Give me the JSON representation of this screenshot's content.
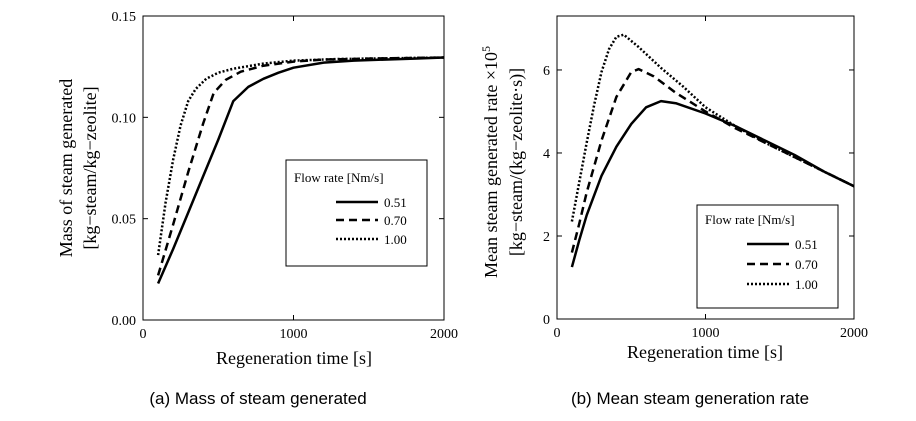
{
  "chart_data": [
    {
      "type": "line",
      "caption": "(a) Mass of steam generated",
      "xlabel": "Regeneration time [s]",
      "ylabel": "Mass of steam generated",
      "ylabel_unit": "[kg−steam/kg−zeolite]",
      "xlim": [
        0,
        2000
      ],
      "ylim": [
        0,
        0.15
      ],
      "x_ticks": [
        0,
        1000,
        2000
      ],
      "y_ticks": [
        "0.00",
        "0.05",
        "0.10",
        "0.15"
      ],
      "grid": false,
      "legend": {
        "title": "Flow rate [Nm/s]",
        "placement": "center-right"
      },
      "series": [
        {
          "name": "0.51",
          "style": "solid",
          "points": [
            [
              100,
              0.018
            ],
            [
              200,
              0.035
            ],
            [
              300,
              0.053
            ],
            [
              400,
              0.071
            ],
            [
              500,
              0.089
            ],
            [
              600,
              0.108
            ],
            [
              700,
              0.115
            ],
            [
              800,
              0.119
            ],
            [
              900,
              0.122
            ],
            [
              1000,
              0.1245
            ],
            [
              1200,
              0.127
            ],
            [
              1400,
              0.128
            ],
            [
              1600,
              0.1285
            ],
            [
              1800,
              0.129
            ],
            [
              2000,
              0.1295
            ]
          ]
        },
        {
          "name": "0.70",
          "style": "dashed",
          "points": [
            [
              100,
              0.022
            ],
            [
              200,
              0.047
            ],
            [
              300,
              0.073
            ],
            [
              400,
              0.097
            ],
            [
              470,
              0.112
            ],
            [
              550,
              0.1185
            ],
            [
              650,
              0.1225
            ],
            [
              800,
              0.1255
            ],
            [
              1000,
              0.1275
            ],
            [
              1200,
              0.1285
            ],
            [
              1500,
              0.129
            ],
            [
              2000,
              0.1295
            ]
          ]
        },
        {
          "name": "1.00",
          "style": "dotted",
          "points": [
            [
              100,
              0.032
            ],
            [
              150,
              0.058
            ],
            [
              200,
              0.079
            ],
            [
              250,
              0.096
            ],
            [
              300,
              0.108
            ],
            [
              350,
              0.114
            ],
            [
              420,
              0.119
            ],
            [
              500,
              0.122
            ],
            [
              600,
              0.124
            ],
            [
              800,
              0.1265
            ],
            [
              1000,
              0.128
            ],
            [
              1300,
              0.1288
            ],
            [
              2000,
              0.1295
            ]
          ]
        }
      ]
    },
    {
      "type": "line",
      "caption": "(b) Mean steam generation rate",
      "xlabel": "Regeneration time [s]",
      "ylabel": "Mean steam generated rate ×10",
      "ylabel_sup": "5",
      "ylabel_unit": "[kg−steam/(kg−zeolite·s)]",
      "xlim": [
        0,
        2000
      ],
      "ylim": [
        0,
        7.3
      ],
      "x_ticks": [
        0,
        1000,
        2000
      ],
      "y_ticks": [
        "0",
        "2",
        "4",
        "6"
      ],
      "grid": false,
      "legend": {
        "title": "Flow rate [Nm/s]",
        "placement": "bottom-right"
      },
      "series": [
        {
          "name": "0.51",
          "style": "solid",
          "points": [
            [
              100,
              1.25
            ],
            [
              150,
              1.9
            ],
            [
              200,
              2.5
            ],
            [
              300,
              3.45
            ],
            [
              400,
              4.15
            ],
            [
              500,
              4.7
            ],
            [
              600,
              5.1
            ],
            [
              700,
              5.25
            ],
            [
              800,
              5.2
            ],
            [
              1000,
              4.95
            ],
            [
              1200,
              4.65
            ],
            [
              1400,
              4.3
            ],
            [
              1600,
              3.95
            ],
            [
              1800,
              3.55
            ],
            [
              2000,
              3.2
            ]
          ]
        },
        {
          "name": "0.70",
          "style": "dashed",
          "points": [
            [
              100,
              1.6
            ],
            [
              150,
              2.3
            ],
            [
              200,
              3.05
            ],
            [
              300,
              4.3
            ],
            [
              400,
              5.35
            ],
            [
              500,
              5.95
            ],
            [
              550,
              6.02
            ],
            [
              650,
              5.85
            ],
            [
              800,
              5.45
            ],
            [
              1000,
              5.0
            ],
            [
              1200,
              4.6
            ],
            [
              1400,
              4.25
            ],
            [
              1600,
              3.9
            ],
            [
              1800,
              3.55
            ],
            [
              2000,
              3.2
            ]
          ]
        },
        {
          "name": "1.00",
          "style": "dotted",
          "points": [
            [
              100,
              2.35
            ],
            [
              150,
              3.3
            ],
            [
              200,
              4.25
            ],
            [
              250,
              5.15
            ],
            [
              300,
              5.95
            ],
            [
              350,
              6.5
            ],
            [
              400,
              6.8
            ],
            [
              450,
              6.85
            ],
            [
              550,
              6.55
            ],
            [
              700,
              6.05
            ],
            [
              850,
              5.6
            ],
            [
              1000,
              5.1
            ],
            [
              1200,
              4.65
            ],
            [
              1400,
              4.25
            ],
            [
              1600,
              3.9
            ],
            [
              1800,
              3.55
            ],
            [
              2000,
              3.2
            ]
          ]
        }
      ]
    }
  ]
}
